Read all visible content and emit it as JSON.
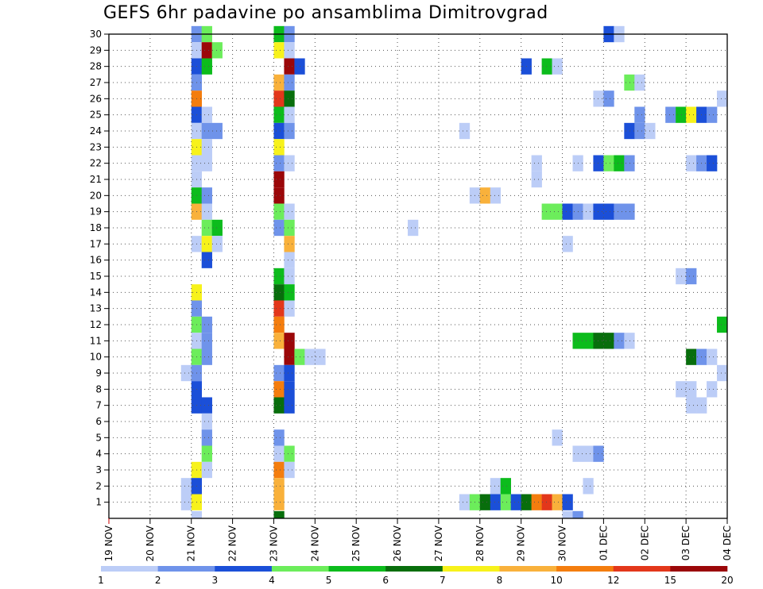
{
  "chart_data": {
    "type": "heatmap",
    "title": "GEFS 6hr padavine po ansamblima Dimitrovgrad",
    "y_ticks": [
      "1",
      "2",
      "3",
      "4",
      "5",
      "6",
      "7",
      "8",
      "9",
      "10",
      "11",
      "12",
      "13",
      "14",
      "15",
      "16",
      "17",
      "18",
      "19",
      "20",
      "21",
      "22",
      "23",
      "24",
      "25",
      "26",
      "27",
      "28",
      "29",
      "30"
    ],
    "y_range": [
      0,
      30
    ],
    "x_ticks": [
      "19 NOV",
      "20 NOV",
      "21 NOV",
      "22 NOV",
      "23 NOV",
      "24 NOV",
      "25 NOV",
      "26 NOV",
      "27 NOV",
      "28 NOV",
      "29 NOV",
      "30 NOV",
      "01 DEC",
      "02 DEC",
      "03 DEC",
      "04 DEC"
    ],
    "x_range": [
      0,
      15
    ],
    "x_step_hours": 6,
    "grid": true,
    "colorbar": {
      "labels": [
        "1",
        "2",
        "3",
        "4",
        "5",
        "6",
        "7",
        "8",
        "10",
        "12",
        "15",
        "20"
      ],
      "colors": [
        "#bccdf7",
        "#6f93ea",
        "#1b4fd8",
        "#6ced5b",
        "#0cbc1c",
        "#086e0c",
        "#f7f21b",
        "#f9b13b",
        "#f47d0e",
        "#e3371b",
        "#9b0709"
      ]
    },
    "cells": [
      [
        30,
        8,
        2
      ],
      [
        30,
        9,
        4
      ],
      [
        30,
        16,
        5
      ],
      [
        30,
        17,
        2
      ],
      [
        30,
        48,
        3
      ],
      [
        30,
        49,
        1
      ],
      [
        29,
        8,
        1
      ],
      [
        29,
        9,
        11
      ],
      [
        29,
        10,
        4
      ],
      [
        29,
        16,
        7
      ],
      [
        29,
        17,
        1
      ],
      [
        28,
        8,
        3
      ],
      [
        28,
        9,
        5
      ],
      [
        28,
        17,
        11
      ],
      [
        28,
        18,
        3
      ],
      [
        28,
        40,
        3
      ],
      [
        28,
        42,
        5
      ],
      [
        28,
        43,
        1
      ],
      [
        27,
        8,
        2
      ],
      [
        27,
        16,
        8
      ],
      [
        27,
        17,
        2
      ],
      [
        27,
        50,
        4
      ],
      [
        27,
        51,
        1
      ],
      [
        26,
        8,
        9
      ],
      [
        26,
        16,
        10
      ],
      [
        26,
        17,
        6
      ],
      [
        26,
        47,
        1
      ],
      [
        26,
        48,
        2
      ],
      [
        26,
        59,
        1
      ],
      [
        25,
        8,
        3
      ],
      [
        25,
        9,
        1
      ],
      [
        25,
        16,
        5
      ],
      [
        25,
        17,
        1
      ],
      [
        25,
        51,
        2
      ],
      [
        25,
        54,
        2
      ],
      [
        25,
        55,
        5
      ],
      [
        25,
        56,
        7
      ],
      [
        25,
        57,
        3
      ],
      [
        25,
        58,
        2
      ],
      [
        24,
        8,
        1
      ],
      [
        24,
        9,
        2
      ],
      [
        24,
        10,
        2
      ],
      [
        24,
        16,
        3
      ],
      [
        24,
        17,
        2
      ],
      [
        24,
        34,
        1
      ],
      [
        24,
        50,
        3
      ],
      [
        24,
        51,
        2
      ],
      [
        24,
        52,
        1
      ],
      [
        23,
        8,
        7
      ],
      [
        23,
        9,
        1
      ],
      [
        23,
        16,
        7
      ],
      [
        22,
        8,
        1
      ],
      [
        22,
        9,
        1
      ],
      [
        22,
        16,
        2
      ],
      [
        22,
        17,
        1
      ],
      [
        22,
        41,
        1
      ],
      [
        22,
        45,
        1
      ],
      [
        22,
        47,
        3
      ],
      [
        22,
        48,
        4
      ],
      [
        22,
        49,
        5
      ],
      [
        22,
        50,
        2
      ],
      [
        22,
        56,
        1
      ],
      [
        22,
        57,
        2
      ],
      [
        22,
        58,
        3
      ],
      [
        21,
        8,
        1
      ],
      [
        21,
        16,
        11
      ],
      [
        21,
        41,
        1
      ],
      [
        20,
        8,
        5
      ],
      [
        20,
        9,
        2
      ],
      [
        20,
        16,
        11
      ],
      [
        20,
        35,
        1
      ],
      [
        20,
        36,
        8
      ],
      [
        20,
        37,
        1
      ],
      [
        19,
        8,
        8
      ],
      [
        19,
        9,
        1
      ],
      [
        19,
        16,
        4
      ],
      [
        19,
        17,
        1
      ],
      [
        19,
        42,
        4
      ],
      [
        19,
        43,
        4
      ],
      [
        19,
        44,
        3
      ],
      [
        19,
        45,
        2
      ],
      [
        19,
        46,
        1
      ],
      [
        19,
        47,
        3
      ],
      [
        19,
        48,
        3
      ],
      [
        19,
        49,
        2
      ],
      [
        19,
        50,
        2
      ],
      [
        18,
        9,
        4
      ],
      [
        18,
        10,
        5
      ],
      [
        18,
        16,
        2
      ],
      [
        18,
        17,
        4
      ],
      [
        18,
        29,
        1
      ],
      [
        17,
        8,
        1
      ],
      [
        17,
        9,
        7
      ],
      [
        17,
        10,
        1
      ],
      [
        17,
        17,
        8
      ],
      [
        17,
        44,
        1
      ],
      [
        16,
        9,
        3
      ],
      [
        16,
        17,
        1
      ],
      [
        15,
        16,
        5
      ],
      [
        15,
        17,
        1
      ],
      [
        15,
        55,
        1
      ],
      [
        15,
        56,
        2
      ],
      [
        14,
        8,
        7
      ],
      [
        14,
        16,
        6
      ],
      [
        14,
        17,
        5
      ],
      [
        13,
        8,
        2
      ],
      [
        13,
        16,
        10
      ],
      [
        13,
        17,
        1
      ],
      [
        12,
        8,
        4
      ],
      [
        12,
        9,
        2
      ],
      [
        12,
        16,
        9
      ],
      [
        12,
        59,
        5
      ],
      [
        11,
        8,
        1
      ],
      [
        11,
        9,
        2
      ],
      [
        11,
        16,
        8
      ],
      [
        11,
        17,
        11
      ],
      [
        11,
        45,
        5
      ],
      [
        11,
        46,
        5
      ],
      [
        11,
        47,
        6
      ],
      [
        11,
        48,
        6
      ],
      [
        11,
        49,
        2
      ],
      [
        11,
        50,
        1
      ],
      [
        10,
        8,
        4
      ],
      [
        10,
        9,
        2
      ],
      [
        10,
        17,
        11
      ],
      [
        10,
        18,
        4
      ],
      [
        10,
        19,
        1
      ],
      [
        10,
        20,
        1
      ],
      [
        10,
        56,
        6
      ],
      [
        10,
        57,
        2
      ],
      [
        10,
        58,
        1
      ],
      [
        9,
        7,
        1
      ],
      [
        9,
        8,
        2
      ],
      [
        9,
        16,
        2
      ],
      [
        9,
        17,
        3
      ],
      [
        9,
        59,
        1
      ],
      [
        8,
        8,
        3
      ],
      [
        8,
        16,
        9
      ],
      [
        8,
        17,
        3
      ],
      [
        8,
        55,
        1
      ],
      [
        8,
        56,
        1
      ],
      [
        8,
        58,
        1
      ],
      [
        7,
        8,
        3
      ],
      [
        7,
        9,
        3
      ],
      [
        7,
        16,
        6
      ],
      [
        7,
        17,
        3
      ],
      [
        7,
        56,
        1
      ],
      [
        7,
        57,
        1
      ],
      [
        6,
        9,
        1
      ],
      [
        5,
        9,
        2
      ],
      [
        5,
        16,
        2
      ],
      [
        5,
        43,
        1
      ],
      [
        4,
        9,
        4
      ],
      [
        4,
        16,
        1
      ],
      [
        4,
        17,
        4
      ],
      [
        4,
        45,
        1
      ],
      [
        4,
        46,
        1
      ],
      [
        4,
        47,
        2
      ],
      [
        3,
        8,
        7
      ],
      [
        3,
        9,
        1
      ],
      [
        3,
        16,
        9
      ],
      [
        3,
        17,
        1
      ],
      [
        2,
        7,
        1
      ],
      [
        2,
        8,
        3
      ],
      [
        2,
        16,
        8
      ],
      [
        2,
        37,
        1
      ],
      [
        2,
        38,
        5
      ],
      [
        2,
        46,
        1
      ],
      [
        1,
        7,
        1
      ],
      [
        1,
        8,
        7
      ],
      [
        1,
        16,
        8
      ],
      [
        1,
        34,
        1
      ],
      [
        1,
        35,
        4
      ],
      [
        1,
        36,
        6
      ],
      [
        1,
        37,
        3
      ],
      [
        1,
        38,
        4
      ],
      [
        1,
        39,
        3
      ],
      [
        1,
        40,
        6
      ],
      [
        1,
        41,
        9
      ],
      [
        1,
        42,
        10
      ],
      [
        1,
        43,
        8
      ],
      [
        1,
        44,
        3
      ],
      [
        0,
        8,
        1
      ],
      [
        0,
        16,
        6
      ],
      [
        0,
        44,
        1
      ],
      [
        0,
        45,
        2
      ]
    ]
  }
}
